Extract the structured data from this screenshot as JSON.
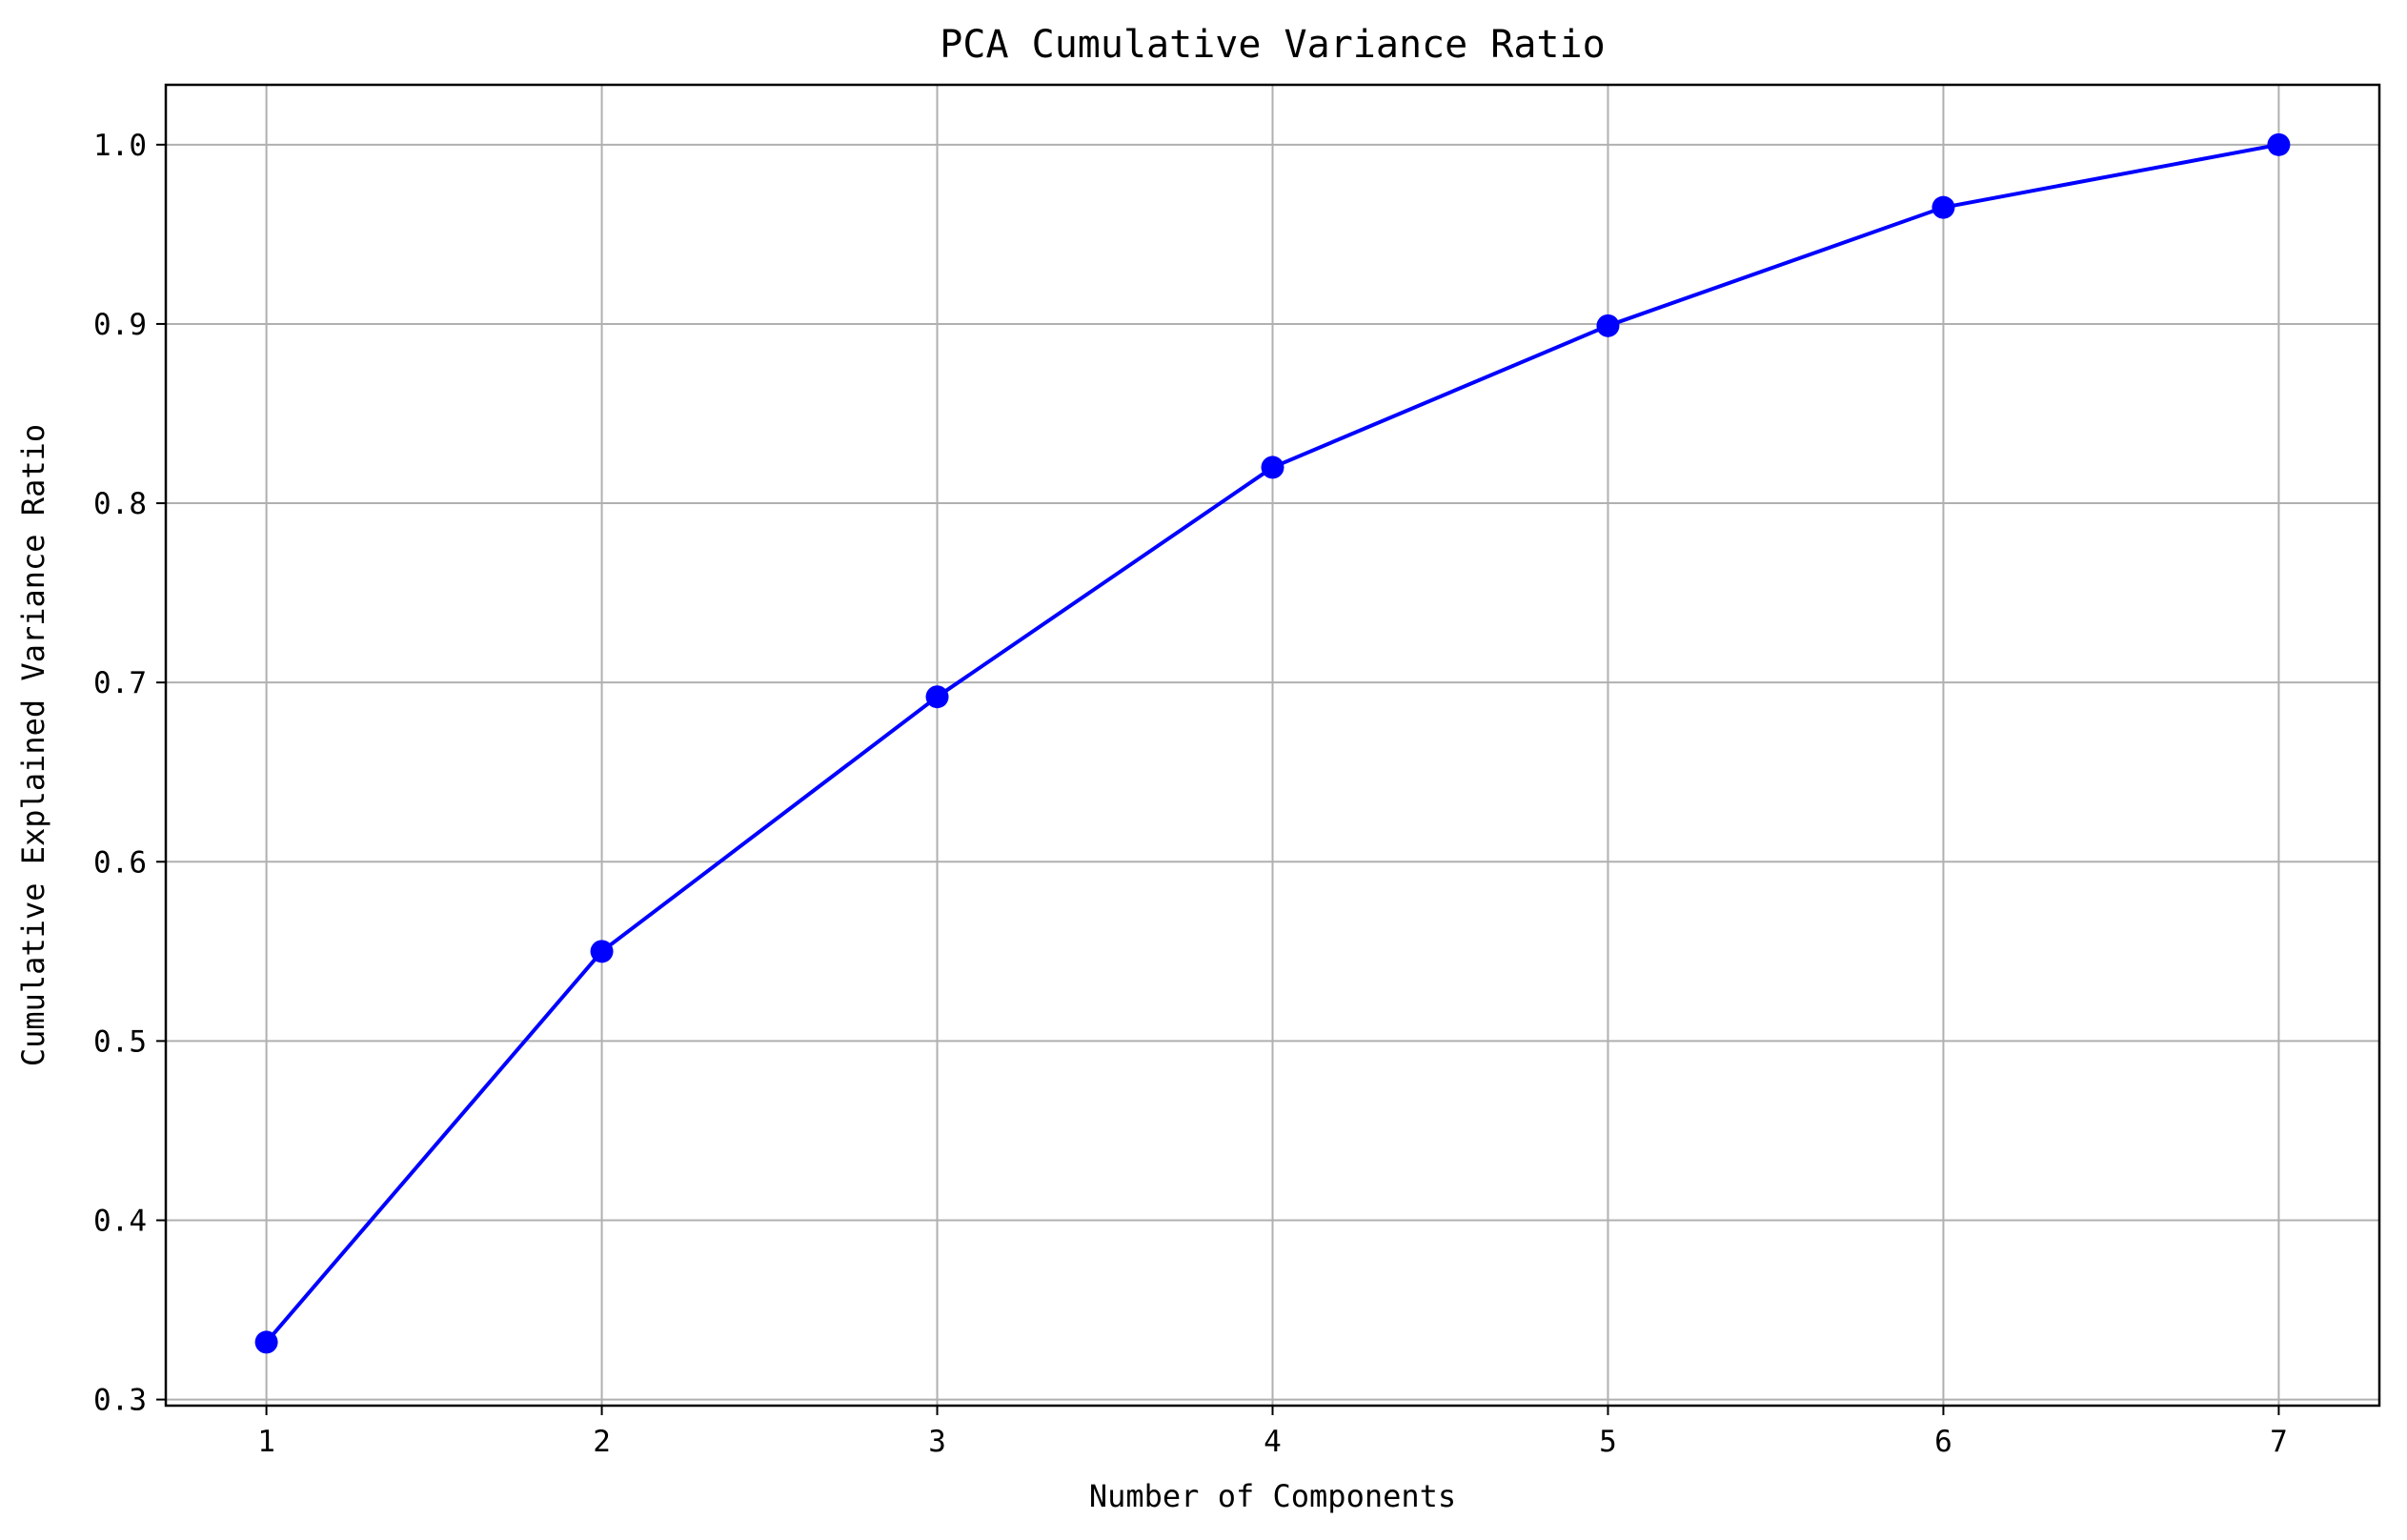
{
  "chart_data": {
    "type": "line",
    "title": "PCA Cumulative Variance Ratio",
    "xlabel": "Number of Components",
    "ylabel": "Cumulative Explained Variance Ratio",
    "x": [
      1,
      2,
      3,
      4,
      5,
      6,
      7
    ],
    "series": [
      {
        "values": [
          0.332,
          0.55,
          0.692,
          0.82,
          0.899,
          0.965,
          1.0
        ],
        "color": "#0000ff",
        "marker": "circle"
      }
    ],
    "xlim": [
      0.7,
      7.3
    ],
    "ylim": [
      0.2966,
      1.0334
    ],
    "xticks": [
      1,
      2,
      3,
      4,
      5,
      6,
      7
    ],
    "xtick_labels": [
      "1",
      "2",
      "3",
      "4",
      "5",
      "6",
      "7"
    ],
    "yticks": [
      0.3,
      0.4,
      0.5,
      0.6,
      0.7,
      0.8,
      0.9,
      1.0
    ],
    "ytick_labels": [
      "0.3",
      "0.4",
      "0.5",
      "0.6",
      "0.7",
      "0.8",
      "0.9",
      "1.0"
    ],
    "grid": true,
    "grid_color": "#b0b0b0",
    "legend": "none"
  }
}
